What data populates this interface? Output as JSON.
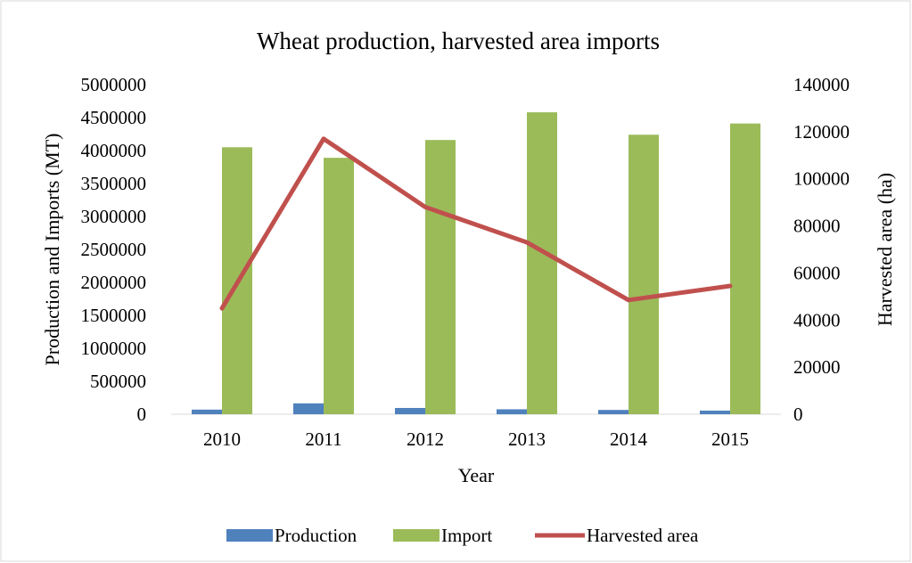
{
  "chart_data": {
    "type": "bar",
    "title": "Wheat production, harvested area imports",
    "xlabel": "Year",
    "ylabel_left": "Production and Imports (MT)",
    "ylabel_right": "Harvested area (ha)",
    "categories": [
      "2010",
      "2011",
      "2012",
      "2013",
      "2014",
      "2015"
    ],
    "y_left_ticks": [
      "0",
      "500000",
      "1000000",
      "1500000",
      "2000000",
      "2500000",
      "3000000",
      "3500000",
      "4000000",
      "4500000",
      "5000000"
    ],
    "y_right_ticks": [
      "0",
      "20000",
      "40000",
      "60000",
      "80000",
      "100000",
      "120000",
      "140000"
    ],
    "ylim_left": [
      0,
      5000000
    ],
    "ylim_right": [
      0,
      140000
    ],
    "grid": false,
    "legend_position": "bottom",
    "series": [
      {
        "name": "Production",
        "type": "bar",
        "axis": "left",
        "color": "#4f81bd",
        "values": [
          70000,
          165000,
          95000,
          75000,
          65000,
          55000
        ]
      },
      {
        "name": "Import",
        "type": "bar",
        "axis": "left",
        "color": "#9bbb59",
        "values": [
          4050000,
          3890000,
          4160000,
          4580000,
          4240000,
          4410000
        ]
      },
      {
        "name": "Harvested area",
        "type": "line",
        "axis": "right",
        "color": "#c0504d",
        "values": [
          45000,
          117000,
          88000,
          73000,
          48500,
          54500
        ]
      }
    ]
  }
}
